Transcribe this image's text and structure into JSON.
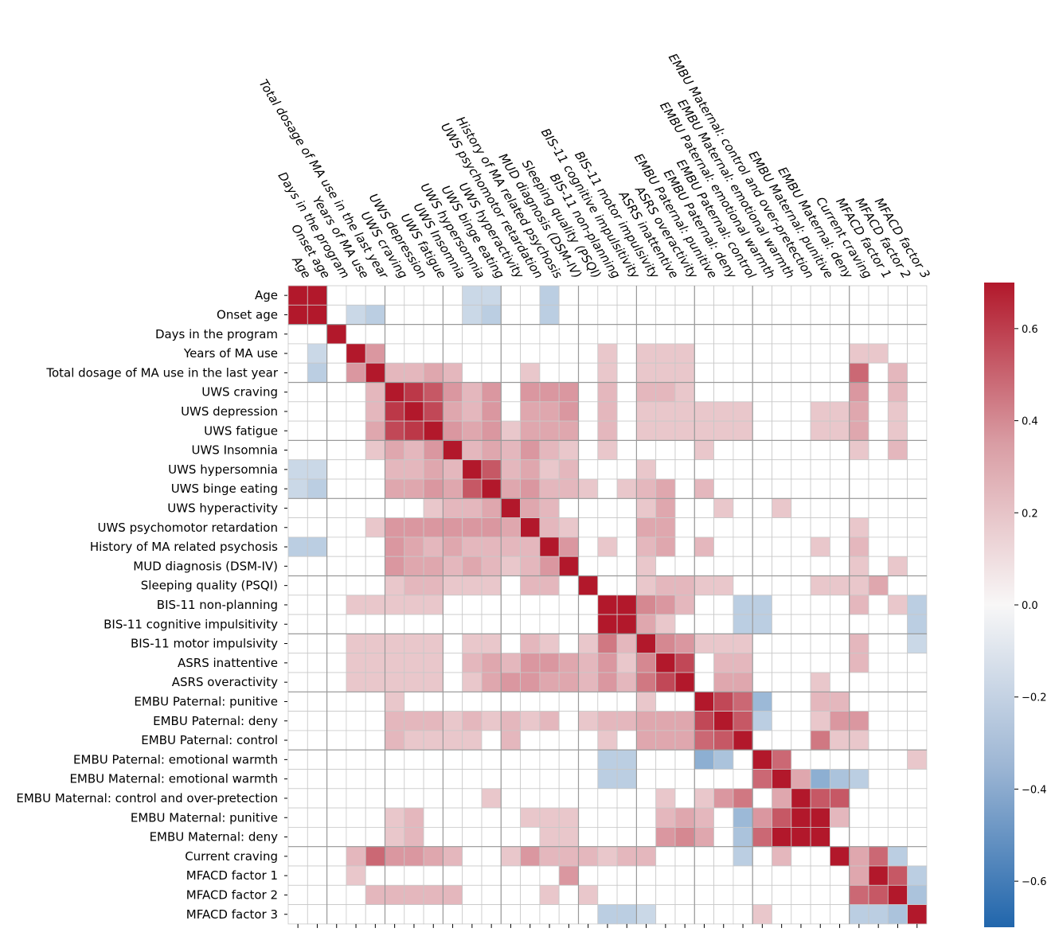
{
  "chart_data": {
    "type": "heatmap",
    "title": "",
    "labels": [
      "Age",
      "Onset age",
      "Days in the program",
      "Years of MA use",
      "Total dosage of MA use in the last year",
      "UWS craving",
      "UWS depression",
      "UWS fatigue",
      "UWS Insomnia",
      "UWS hypersomnia",
      "UWS binge eating",
      "UWS hyperactivity",
      "UWS psychomotor retardation",
      "History of MA related psychosis",
      "MUD diagnosis (DSM-IV)",
      "Sleeping quality (PSQI)",
      "BIS-11 non-planning",
      "BIS-11 cognitive impulsitivity",
      "BIS-11 motor impulsivity",
      "ASRS inattentive",
      "ASRS overactivity",
      "EMBU Paternal: punitive",
      "EMBU Paternal: deny",
      "EMBU Paternal: control",
      "EMBU Paternal: emotional warmth",
      "EMBU Maternal: emotional warmth",
      "EMBU Maternal: control and over-pretection",
      "EMBU Maternal: punitive",
      "EMBU Maternal: deny",
      "Current craving",
      "MFACD factor 1",
      "MFACD factor 2",
      "MFACD factor 3"
    ],
    "values": [
      [
        0.7,
        0.7,
        0,
        0,
        0,
        0,
        0,
        0,
        0,
        -0.15,
        -0.15,
        0,
        0,
        -0.2,
        0,
        0,
        0,
        0,
        0,
        0,
        0,
        0,
        0,
        0,
        0,
        0,
        0,
        0,
        0,
        0,
        0,
        0,
        0
      ],
      [
        0.7,
        0.7,
        0,
        -0.15,
        -0.2,
        0,
        0,
        0,
        0,
        -0.15,
        -0.2,
        0,
        0,
        -0.2,
        0,
        0,
        0,
        0,
        0,
        0,
        0,
        0,
        0,
        0,
        0,
        0,
        0,
        0,
        0,
        0,
        0,
        0,
        0
      ],
      [
        0,
        0,
        0.7,
        0,
        0,
        0,
        0,
        0,
        0,
        0,
        0,
        0,
        0,
        0,
        0,
        0,
        0,
        0,
        0,
        0,
        0,
        0,
        0,
        0,
        0,
        0,
        0,
        0,
        0,
        0,
        0,
        0,
        0
      ],
      [
        0,
        -0.15,
        0,
        0.7,
        0.3,
        0,
        0,
        0,
        0,
        0,
        0,
        0,
        0,
        0,
        0,
        0,
        0.15,
        0,
        0.15,
        0.15,
        0.15,
        0,
        0,
        0,
        0,
        0,
        0,
        0,
        0,
        0.15,
        0.15,
        0,
        0
      ],
      [
        0,
        -0.2,
        0,
        0.3,
        0.7,
        0.2,
        0.2,
        0.25,
        0.2,
        0,
        0,
        0,
        0.15,
        0,
        0,
        0,
        0.15,
        0,
        0.15,
        0.15,
        0.15,
        0,
        0,
        0,
        0,
        0,
        0,
        0,
        0,
        0.45,
        0,
        0.2,
        0
      ],
      [
        0,
        0,
        0,
        0,
        0.2,
        0.7,
        0.6,
        0.5,
        0.3,
        0.2,
        0.3,
        0,
        0.3,
        0.3,
        0.3,
        0,
        0.2,
        0,
        0.2,
        0.2,
        0.15,
        0,
        0,
        0,
        0,
        0,
        0,
        0,
        0,
        0.3,
        0,
        0.2,
        0
      ],
      [
        0,
        0,
        0,
        0,
        0.2,
        0.6,
        0.7,
        0.55,
        0.25,
        0.2,
        0.3,
        0,
        0.25,
        0.25,
        0.3,
        0,
        0.2,
        0,
        0.15,
        0.15,
        0.15,
        0.15,
        0.15,
        0.15,
        0,
        0,
        0,
        0.15,
        0.15,
        0.25,
        0,
        0.15,
        0
      ],
      [
        0,
        0,
        0,
        0,
        0.25,
        0.55,
        0.6,
        0.7,
        0.3,
        0.25,
        0.3,
        0.15,
        0.25,
        0.25,
        0.25,
        0,
        0.2,
        0,
        0.15,
        0.15,
        0.15,
        0.15,
        0.15,
        0.15,
        0,
        0,
        0,
        0.15,
        0.15,
        0.25,
        0,
        0.15,
        0
      ],
      [
        0,
        0,
        0,
        0,
        0.15,
        0.25,
        0.2,
        0.3,
        0.7,
        0.2,
        0.25,
        0.2,
        0.3,
        0.2,
        0.15,
        0,
        0.15,
        0,
        0,
        0,
        0,
        0.15,
        0,
        0,
        0,
        0,
        0,
        0,
        0,
        0.15,
        0,
        0.2,
        0
      ],
      [
        -0.15,
        -0.15,
        0,
        0,
        0,
        0.2,
        0.2,
        0.25,
        0.2,
        0.7,
        0.5,
        0.2,
        0.25,
        0.15,
        0.2,
        0,
        0,
        0,
        0.15,
        0,
        0,
        0,
        0,
        0,
        0,
        0,
        0,
        0,
        0,
        0,
        0,
        0,
        0
      ],
      [
        -0.15,
        -0.2,
        0,
        0,
        0,
        0.25,
        0.25,
        0.3,
        0.25,
        0.5,
        0.7,
        0.25,
        0.3,
        0.2,
        0.2,
        0.15,
        0,
        0.15,
        0.2,
        0.25,
        0,
        0.2,
        0,
        0,
        0,
        0,
        0,
        0,
        0,
        0,
        0,
        0,
        0
      ],
      [
        0,
        0,
        0,
        0,
        0,
        0,
        0,
        0.15,
        0.2,
        0.2,
        0.25,
        0.7,
        0.25,
        0.2,
        0,
        0,
        0,
        0,
        0.15,
        0.25,
        0,
        0,
        0.15,
        0,
        0,
        0.15,
        0,
        0,
        0,
        0,
        0,
        0,
        0
      ],
      [
        0,
        0,
        0,
        0,
        0.15,
        0.3,
        0.3,
        0.3,
        0.3,
        0.3,
        0.3,
        0.25,
        0.7,
        0.2,
        0.15,
        0,
        0,
        0,
        0.25,
        0.25,
        0,
        0,
        0,
        0,
        0,
        0,
        0,
        0,
        0,
        0.15,
        0,
        0,
        0
      ],
      [
        -0.2,
        -0.2,
        0,
        0,
        0,
        0.3,
        0.25,
        0.2,
        0.25,
        0.2,
        0.2,
        0.2,
        0.2,
        0.7,
        0.3,
        0,
        0.15,
        0,
        0.2,
        0.25,
        0,
        0.2,
        0,
        0,
        0,
        0,
        0,
        0.15,
        0,
        0.2,
        0,
        0,
        0
      ],
      [
        0,
        0,
        0,
        0,
        0,
        0.3,
        0.25,
        0.25,
        0.2,
        0.25,
        0.2,
        0.15,
        0.2,
        0.3,
        0.7,
        0,
        0,
        0,
        0.15,
        0,
        0,
        0,
        0,
        0,
        0,
        0,
        0,
        0,
        0,
        0.15,
        0,
        0.15,
        0
      ],
      [
        0,
        0,
        0,
        0,
        0,
        0.15,
        0.2,
        0.2,
        0.15,
        0.15,
        0.15,
        0,
        0.2,
        0.2,
        0,
        0.7,
        0,
        0,
        0.15,
        0.2,
        0.2,
        0.15,
        0.15,
        0,
        0,
        0,
        0,
        0.15,
        0.15,
        0.15,
        0.25,
        0,
        0
      ],
      [
        0,
        0,
        0,
        0.15,
        0.15,
        0.15,
        0.15,
        0.15,
        0,
        0,
        0,
        0,
        0,
        0,
        0,
        0,
        0.7,
        0.7,
        0.35,
        0.3,
        0.2,
        0,
        0,
        -0.2,
        -0.2,
        0,
        0,
        0,
        0,
        0.2,
        0,
        0.15,
        -0.2
      ],
      [
        0,
        0,
        0,
        0,
        0,
        0,
        0,
        0,
        0,
        0,
        0,
        0,
        0,
        0,
        0,
        0,
        0.7,
        0.7,
        0.25,
        0.15,
        0,
        0,
        0,
        -0.2,
        -0.2,
        0,
        0,
        0,
        0,
        0,
        0,
        0,
        -0.2
      ],
      [
        0,
        0,
        0,
        0.15,
        0.15,
        0.15,
        0.15,
        0.15,
        0,
        0.15,
        0.15,
        0,
        0.2,
        0.15,
        0,
        0.15,
        0.4,
        0.2,
        0.7,
        0.35,
        0.3,
        0.15,
        0.15,
        0.15,
        0,
        0,
        0,
        0,
        0,
        0.2,
        0,
        0,
        -0.15
      ],
      [
        0,
        0,
        0,
        0.15,
        0.15,
        0.15,
        0.15,
        0.15,
        0,
        0.2,
        0.25,
        0.2,
        0.3,
        0.3,
        0.25,
        0.2,
        0.3,
        0.15,
        0.35,
        0.7,
        0.55,
        0,
        0.2,
        0.2,
        0,
        0,
        0,
        0,
        0,
        0.2,
        0,
        0,
        0
      ],
      [
        0,
        0,
        0,
        0.15,
        0.15,
        0.15,
        0.15,
        0.15,
        0,
        0.15,
        0.25,
        0.3,
        0.3,
        0.25,
        0.25,
        0.2,
        0.3,
        0.2,
        0.4,
        0.55,
        0.7,
        0,
        0.25,
        0.25,
        0,
        0,
        0,
        0.15,
        0,
        0,
        0,
        0,
        0
      ],
      [
        0,
        0,
        0,
        0,
        0,
        0.15,
        0,
        0,
        0,
        0,
        0,
        0,
        0,
        0,
        0,
        0,
        0,
        0,
        0.15,
        0,
        0,
        0.7,
        0.55,
        0.45,
        -0.3,
        0,
        0,
        0.2,
        0.2,
        0,
        0,
        0,
        0
      ],
      [
        0,
        0,
        0,
        0,
        0,
        0.2,
        0.2,
        0.2,
        0.15,
        0.2,
        0.15,
        0.2,
        0.15,
        0.2,
        0,
        0.15,
        0.2,
        0.2,
        0.25,
        0.25,
        0.25,
        0.55,
        0.7,
        0.5,
        -0.2,
        0,
        0,
        0.15,
        0.3,
        0.3,
        0,
        0,
        0
      ],
      [
        0,
        0,
        0,
        0,
        0,
        0.2,
        0.15,
        0.15,
        0.15,
        0.15,
        0,
        0.2,
        0,
        0,
        0,
        0,
        0.15,
        0,
        0.25,
        0.25,
        0.25,
        0.45,
        0.5,
        0.7,
        0,
        0,
        0,
        0.4,
        0.15,
        0.15,
        0,
        0,
        0
      ],
      [
        0,
        0,
        0,
        0,
        0,
        0,
        0,
        0,
        0,
        0,
        0,
        0,
        0,
        0,
        0,
        0,
        -0.2,
        -0.2,
        0,
        0,
        0,
        -0.35,
        -0.25,
        0,
        0.7,
        0.45,
        0,
        0,
        0,
        0,
        0,
        0,
        0.15
      ],
      [
        0,
        0,
        0,
        0,
        0,
        0,
        0,
        0,
        0,
        0,
        0,
        0,
        0,
        0,
        0,
        0,
        -0.2,
        -0.2,
        0,
        0,
        0,
        0,
        0,
        0,
        0.45,
        0.7,
        0.25,
        -0.35,
        -0.25,
        -0.2,
        0,
        0,
        0
      ],
      [
        0,
        0,
        0,
        0,
        0,
        0,
        0,
        0,
        0,
        0,
        0.15,
        0,
        0,
        0,
        0,
        0,
        0,
        0,
        0,
        0.15,
        0,
        0.15,
        0.3,
        0.4,
        0,
        0.25,
        0.7,
        0.5,
        0.5,
        0,
        0,
        0,
        0
      ],
      [
        0,
        0,
        0,
        0,
        0,
        0.15,
        0.2,
        0,
        0,
        0,
        0,
        0,
        0.15,
        0.15,
        0.15,
        0,
        0,
        0,
        0,
        0.2,
        0.25,
        0.2,
        0,
        -0.3,
        0.3,
        0.5,
        0.7,
        0.7,
        0.2,
        0,
        0,
        0,
        0
      ],
      [
        0,
        0,
        0,
        0,
        0,
        0.15,
        0.2,
        0,
        0,
        0,
        0,
        0,
        0,
        0.15,
        0.15,
        0,
        0,
        0,
        0,
        0.3,
        0.35,
        0.25,
        0,
        -0.25,
        0.45,
        0.7,
        0.7,
        0.7,
        0,
        0,
        0,
        0,
        0
      ],
      [
        0,
        0,
        0,
        0.2,
        0.45,
        0.3,
        0.3,
        0.25,
        0.2,
        0,
        0,
        0.15,
        0.3,
        0.2,
        0.2,
        0.2,
        0.15,
        0.2,
        0.2,
        0,
        0,
        0,
        0,
        -0.2,
        0,
        0.2,
        0,
        0,
        0.7,
        0.25,
        0.45,
        -0.2,
        0
      ],
      [
        0,
        0,
        0,
        0.15,
        0,
        0,
        0,
        0,
        0,
        0,
        0,
        0,
        0,
        0,
        0.3,
        0,
        0,
        0,
        0,
        0,
        0,
        0,
        0,
        0,
        0,
        0,
        0,
        0,
        0,
        0.25,
        0.7,
        0.5,
        -0.2
      ],
      [
        0,
        0,
        0,
        0,
        0.2,
        0.2,
        0.2,
        0.2,
        0.2,
        0,
        0,
        0,
        0,
        0.15,
        0,
        0.15,
        0,
        0,
        0,
        0,
        0,
        0,
        0,
        0,
        0,
        0,
        0,
        0,
        0,
        0.45,
        0.5,
        0.7,
        -0.25
      ],
      [
        0,
        0,
        0,
        0,
        0,
        0,
        0,
        0,
        0,
        0,
        0,
        0,
        0,
        0,
        0,
        0,
        -0.2,
        -0.2,
        -0.15,
        0,
        0,
        0,
        0,
        0,
        0.15,
        0,
        0,
        0,
        0,
        -0.2,
        -0.2,
        -0.25,
        0.7
      ]
    ],
    "group_breaks": [
      2,
      5,
      8,
      11,
      15,
      18,
      21,
      24,
      29
    ],
    "colorbar": {
      "min": -0.7,
      "max": 0.7,
      "ticks": [
        0.6,
        0.4,
        0.2,
        0.0,
        -0.2,
        -0.4,
        -0.6
      ],
      "tick_labels": [
        "0.6",
        "0.4",
        "0.2",
        "0.0",
        "−0.2",
        "−0.4",
        "−0.6"
      ],
      "colormap": "vlag",
      "color_low": "#2166ac",
      "color_mid": "#f8f7f7",
      "color_high": "#b2182b"
    }
  }
}
